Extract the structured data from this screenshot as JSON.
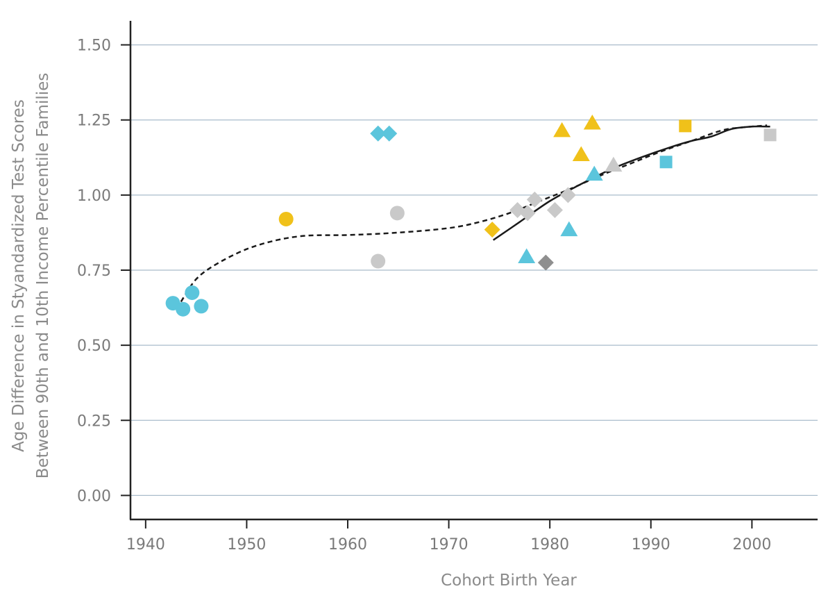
{
  "chart_data": {
    "type": "scatter",
    "xlabel": "Cohort Birth Year",
    "ylabel_lines": [
      "Age Difference in Styandardized Test Scores",
      "Between 90th and 10th Income Percentile Families"
    ],
    "xlim": [
      1938.5,
      2006.5
    ],
    "ylim": [
      -0.08,
      1.58
    ],
    "x_ticks": [
      1940,
      1950,
      1960,
      1970,
      1980,
      1990,
      2000
    ],
    "y_ticks": [
      0.0,
      0.25,
      0.5,
      0.75,
      1.0,
      1.25,
      1.5
    ],
    "y_tick_labels": [
      "0.00",
      "0.25",
      "0.50",
      "0.75",
      "1.00",
      "1.25",
      "1.50"
    ],
    "grid": "horizontal",
    "colors": {
      "blue": "#5bc5dc",
      "gold": "#f0c11a",
      "light_gray": "#c9c9c9",
      "dark_gray": "#8f8f8f",
      "grid": "#a9bccb",
      "axis": "#222222",
      "line": "#1a1a1a"
    },
    "points": [
      {
        "x": 1942.7,
        "y": 0.64,
        "shape": "circle",
        "color": "blue"
      },
      {
        "x": 1943.7,
        "y": 0.62,
        "shape": "circle",
        "color": "blue"
      },
      {
        "x": 1944.6,
        "y": 0.675,
        "shape": "circle",
        "color": "blue"
      },
      {
        "x": 1945.5,
        "y": 0.63,
        "shape": "circle",
        "color": "blue"
      },
      {
        "x": 1953.9,
        "y": 0.92,
        "shape": "circle",
        "color": "gold"
      },
      {
        "x": 1963.0,
        "y": 0.78,
        "shape": "circle",
        "color": "light_gray"
      },
      {
        "x": 1964.9,
        "y": 0.94,
        "shape": "circle",
        "color": "light_gray"
      },
      {
        "x": 1963.0,
        "y": 1.205,
        "shape": "diamond",
        "color": "blue"
      },
      {
        "x": 1964.1,
        "y": 1.205,
        "shape": "diamond",
        "color": "blue"
      },
      {
        "x": 1974.3,
        "y": 0.885,
        "shape": "diamond",
        "color": "gold"
      },
      {
        "x": 1976.8,
        "y": 0.95,
        "shape": "diamond",
        "color": "light_gray"
      },
      {
        "x": 1977.8,
        "y": 0.94,
        "shape": "diamond",
        "color": "light_gray"
      },
      {
        "x": 1978.5,
        "y": 0.985,
        "shape": "diamond",
        "color": "light_gray"
      },
      {
        "x": 1980.5,
        "y": 0.95,
        "shape": "diamond",
        "color": "light_gray"
      },
      {
        "x": 1981.8,
        "y": 1.0,
        "shape": "diamond",
        "color": "light_gray"
      },
      {
        "x": 1979.6,
        "y": 0.775,
        "shape": "diamond",
        "color": "dark_gray"
      },
      {
        "x": 1977.7,
        "y": 0.795,
        "shape": "triangle",
        "color": "blue"
      },
      {
        "x": 1981.9,
        "y": 0.885,
        "shape": "triangle",
        "color": "blue"
      },
      {
        "x": 1984.4,
        "y": 1.07,
        "shape": "triangle",
        "color": "blue"
      },
      {
        "x": 1981.2,
        "y": 1.215,
        "shape": "triangle",
        "color": "gold"
      },
      {
        "x": 1983.1,
        "y": 1.135,
        "shape": "triangle",
        "color": "gold"
      },
      {
        "x": 1984.2,
        "y": 1.24,
        "shape": "triangle",
        "color": "gold"
      },
      {
        "x": 1986.3,
        "y": 1.1,
        "shape": "triangle",
        "color": "light_gray"
      },
      {
        "x": 1991.5,
        "y": 1.11,
        "shape": "square",
        "color": "blue"
      },
      {
        "x": 1993.4,
        "y": 1.23,
        "shape": "square",
        "color": "gold"
      },
      {
        "x": 2001.8,
        "y": 1.2,
        "shape": "square",
        "color": "light_gray"
      }
    ],
    "series": [
      {
        "style": "dashed",
        "x": [
          1943.5,
          1945,
          1947,
          1950,
          1953,
          1956,
          1960,
          1965,
          1970,
          1973,
          1976,
          1979,
          1982,
          1985,
          1988,
          1991,
          1994,
          1997,
          1999,
          2001.5
        ],
        "y": [
          0.645,
          0.72,
          0.77,
          0.82,
          0.85,
          0.865,
          0.867,
          0.875,
          0.89,
          0.91,
          0.94,
          0.98,
          1.02,
          1.065,
          1.105,
          1.145,
          1.18,
          1.215,
          1.225,
          1.232
        ]
      },
      {
        "style": "solid",
        "x": [
          1974.4,
          1977,
          1980,
          1983,
          1986,
          1989,
          1992,
          1994,
          1996,
          1998,
          2000,
          2001.8
        ],
        "y": [
          0.85,
          0.91,
          0.98,
          1.035,
          1.085,
          1.125,
          1.16,
          1.18,
          1.195,
          1.22,
          1.228,
          1.228
        ]
      }
    ]
  }
}
